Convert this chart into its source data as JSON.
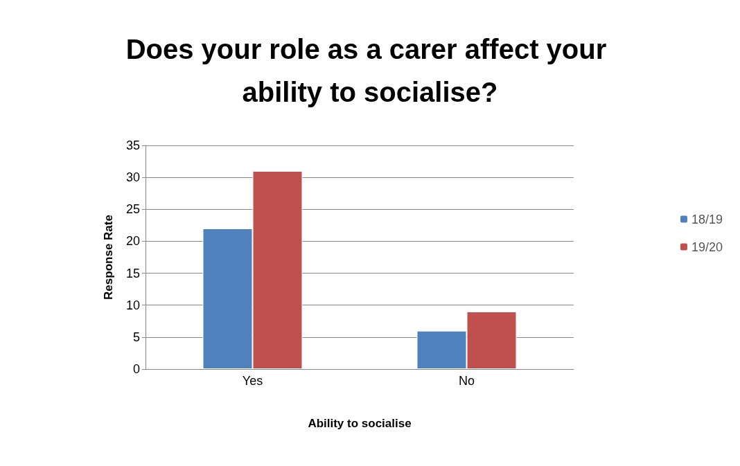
{
  "chart_data": {
    "type": "bar",
    "title": "Does your role as a carer affect your ability to socialise?",
    "xlabel": "Ability to socialise",
    "ylabel": "Response Rate",
    "categories": [
      "Yes",
      "No"
    ],
    "series": [
      {
        "name": "18/19",
        "color": "#4f81bd",
        "values": [
          22,
          6
        ]
      },
      {
        "name": "19/20",
        "color": "#c0504d",
        "values": [
          31,
          9
        ]
      }
    ],
    "ylim": [
      0,
      35
    ],
    "yticks": [
      0,
      5,
      10,
      15,
      20,
      25,
      30,
      35
    ],
    "grid": "y",
    "legend": "right"
  }
}
